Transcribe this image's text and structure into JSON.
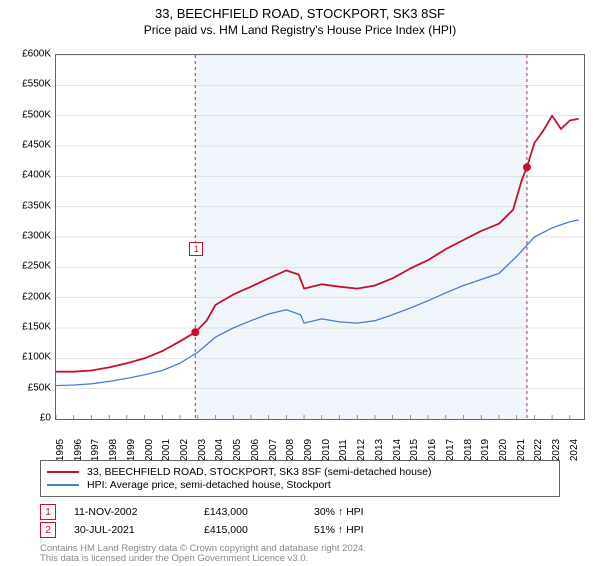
{
  "title": "33, BEECHFIELD ROAD, STOCKPORT, SK3 8SF",
  "subtitle": "Price paid vs. HM Land Registry's House Price Index (HPI)",
  "chart": {
    "type": "line",
    "background_color": "#ffffff",
    "shaded_region_color": "#f0f5fb",
    "grid_color": "#cccccc",
    "border_color": "#666666",
    "x_years": [
      1995,
      1996,
      1997,
      1998,
      1999,
      2000,
      2001,
      2002,
      2003,
      2004,
      2005,
      2006,
      2007,
      2008,
      2009,
      2010,
      2011,
      2012,
      2013,
      2014,
      2015,
      2016,
      2017,
      2018,
      2019,
      2020,
      2021,
      2022,
      2023,
      2024
    ],
    "x_min": 1995,
    "x_max": 2024.8,
    "y_ticks": [
      0,
      50000,
      100000,
      150000,
      200000,
      250000,
      300000,
      350000,
      400000,
      450000,
      500000,
      550000,
      600000
    ],
    "y_tick_labels": [
      "£0",
      "£50K",
      "£100K",
      "£150K",
      "£200K",
      "£250K",
      "£300K",
      "£350K",
      "£400K",
      "£450K",
      "£500K",
      "£550K",
      "£600K"
    ],
    "y_min": 0,
    "y_max": 600000,
    "shaded_x_start": 2002.86,
    "shaded_x_end": 2021.58,
    "series": [
      {
        "name": "property",
        "label": "33, BEECHFIELD ROAD, STOCKPORT, SK3 8SF (semi-detached house)",
        "color": "#c8102e",
        "line_width": 1.8,
        "data": [
          [
            1995,
            78000
          ],
          [
            1996,
            78000
          ],
          [
            1997,
            80000
          ],
          [
            1998,
            85000
          ],
          [
            1999,
            92000
          ],
          [
            2000,
            100000
          ],
          [
            2001,
            112000
          ],
          [
            2002,
            128000
          ],
          [
            2002.86,
            143000
          ],
          [
            2003.5,
            162000
          ],
          [
            2004,
            188000
          ],
          [
            2005,
            205000
          ],
          [
            2006,
            218000
          ],
          [
            2007,
            232000
          ],
          [
            2008,
            245000
          ],
          [
            2008.7,
            238000
          ],
          [
            2009,
            215000
          ],
          [
            2010,
            222000
          ],
          [
            2011,
            218000
          ],
          [
            2012,
            215000
          ],
          [
            2013,
            220000
          ],
          [
            2014,
            232000
          ],
          [
            2015,
            248000
          ],
          [
            2016,
            262000
          ],
          [
            2017,
            280000
          ],
          [
            2018,
            295000
          ],
          [
            2019,
            310000
          ],
          [
            2020,
            322000
          ],
          [
            2020.8,
            345000
          ],
          [
            2021.3,
            395000
          ],
          [
            2021.58,
            415000
          ],
          [
            2022,
            455000
          ],
          [
            2022.5,
            475000
          ],
          [
            2023,
            500000
          ],
          [
            2023.5,
            478000
          ],
          [
            2024,
            492000
          ],
          [
            2024.5,
            495000
          ]
        ]
      },
      {
        "name": "hpi",
        "label": "HPI: Average price, semi-detached house, Stockport",
        "color": "#4a7ec8",
        "line_width": 1.3,
        "data": [
          [
            1995,
            55000
          ],
          [
            1996,
            56000
          ],
          [
            1997,
            58000
          ],
          [
            1998,
            62000
          ],
          [
            1999,
            67000
          ],
          [
            2000,
            73000
          ],
          [
            2001,
            80000
          ],
          [
            2002,
            92000
          ],
          [
            2003,
            110000
          ],
          [
            2004,
            135000
          ],
          [
            2005,
            150000
          ],
          [
            2006,
            162000
          ],
          [
            2007,
            173000
          ],
          [
            2008,
            180000
          ],
          [
            2008.8,
            172000
          ],
          [
            2009,
            158000
          ],
          [
            2010,
            165000
          ],
          [
            2011,
            160000
          ],
          [
            2012,
            158000
          ],
          [
            2013,
            162000
          ],
          [
            2014,
            172000
          ],
          [
            2015,
            183000
          ],
          [
            2016,
            195000
          ],
          [
            2017,
            208000
          ],
          [
            2018,
            220000
          ],
          [
            2019,
            230000
          ],
          [
            2020,
            240000
          ],
          [
            2021,
            268000
          ],
          [
            2022,
            300000
          ],
          [
            2023,
            315000
          ],
          [
            2024,
            325000
          ],
          [
            2024.5,
            328000
          ]
        ]
      }
    ],
    "markers": [
      {
        "n": "1",
        "x": 2002.86,
        "y": 143000,
        "color": "#c8102e",
        "vline_dash": "3,3",
        "label_y_offset": -90
      },
      {
        "n": "2",
        "x": 2021.58,
        "y": 415000,
        "color": "#c8102e",
        "vline_dash": "3,3",
        "label_y_offset": -358
      }
    ],
    "marker_dot_radius": 4
  },
  "legend": {
    "items": [
      {
        "color": "#c8102e",
        "label": "33, BEECHFIELD ROAD, STOCKPORT, SK3 8SF (semi-detached house)"
      },
      {
        "color": "#4a7ec8",
        "label": "HPI: Average price, semi-detached house, Stockport"
      }
    ]
  },
  "transactions": [
    {
      "n": "1",
      "color": "#c8102e",
      "date": "11-NOV-2002",
      "price": "£143,000",
      "pct": "30% ↑ HPI"
    },
    {
      "n": "2",
      "color": "#c8102e",
      "date": "30-JUL-2021",
      "price": "£415,000",
      "pct": "51% ↑ HPI"
    }
  ],
  "footer_line1": "Contains HM Land Registry data © Crown copyright and database right 2024.",
  "footer_line2": "This data is licensed under the Open Government Licence v3.0."
}
